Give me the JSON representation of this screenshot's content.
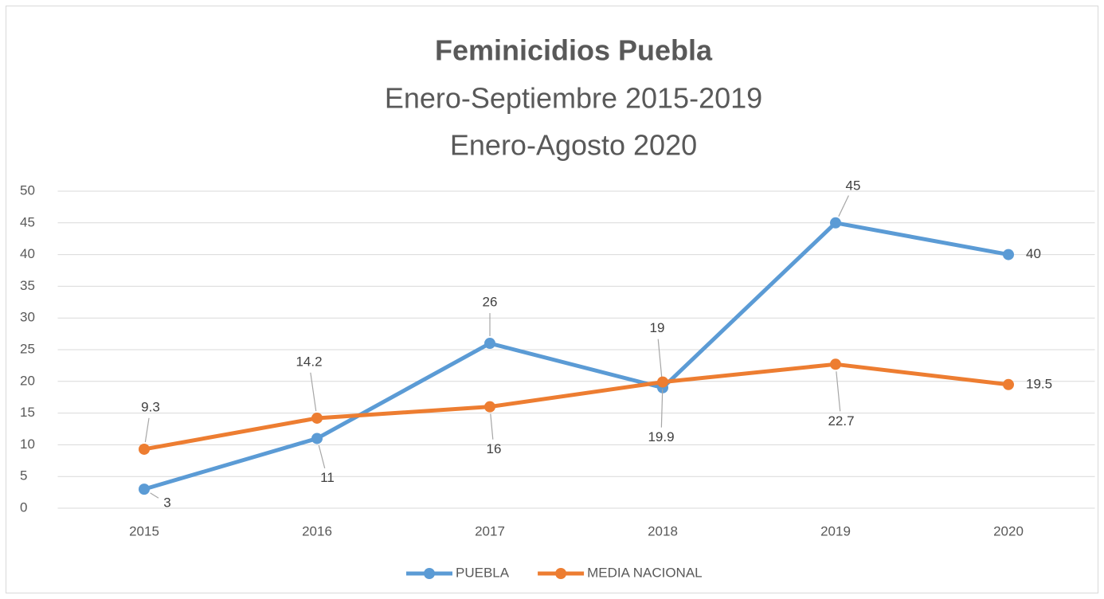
{
  "chart_data": {
    "type": "line",
    "title": "Feminicidios Puebla",
    "subtitle": [
      "Enero-Septiembre 2015-2019",
      "Enero-Agosto 2020"
    ],
    "categories": [
      "2015",
      "2016",
      "2017",
      "2018",
      "2019",
      "2020"
    ],
    "series": [
      {
        "name": "PUEBLA",
        "color": "#5b9bd5",
        "values": [
          3,
          11,
          26,
          19,
          45,
          40
        ]
      },
      {
        "name": "MEDIA NACIONAL",
        "color": "#ed7d31",
        "values": [
          9.3,
          14.2,
          16,
          19.9,
          22.7,
          19.5
        ]
      }
    ],
    "ylim": [
      0,
      50
    ],
    "yticks": [
      0,
      5,
      10,
      15,
      20,
      25,
      30,
      35,
      40,
      45,
      50
    ],
    "grid": true,
    "legend": "bottom"
  }
}
